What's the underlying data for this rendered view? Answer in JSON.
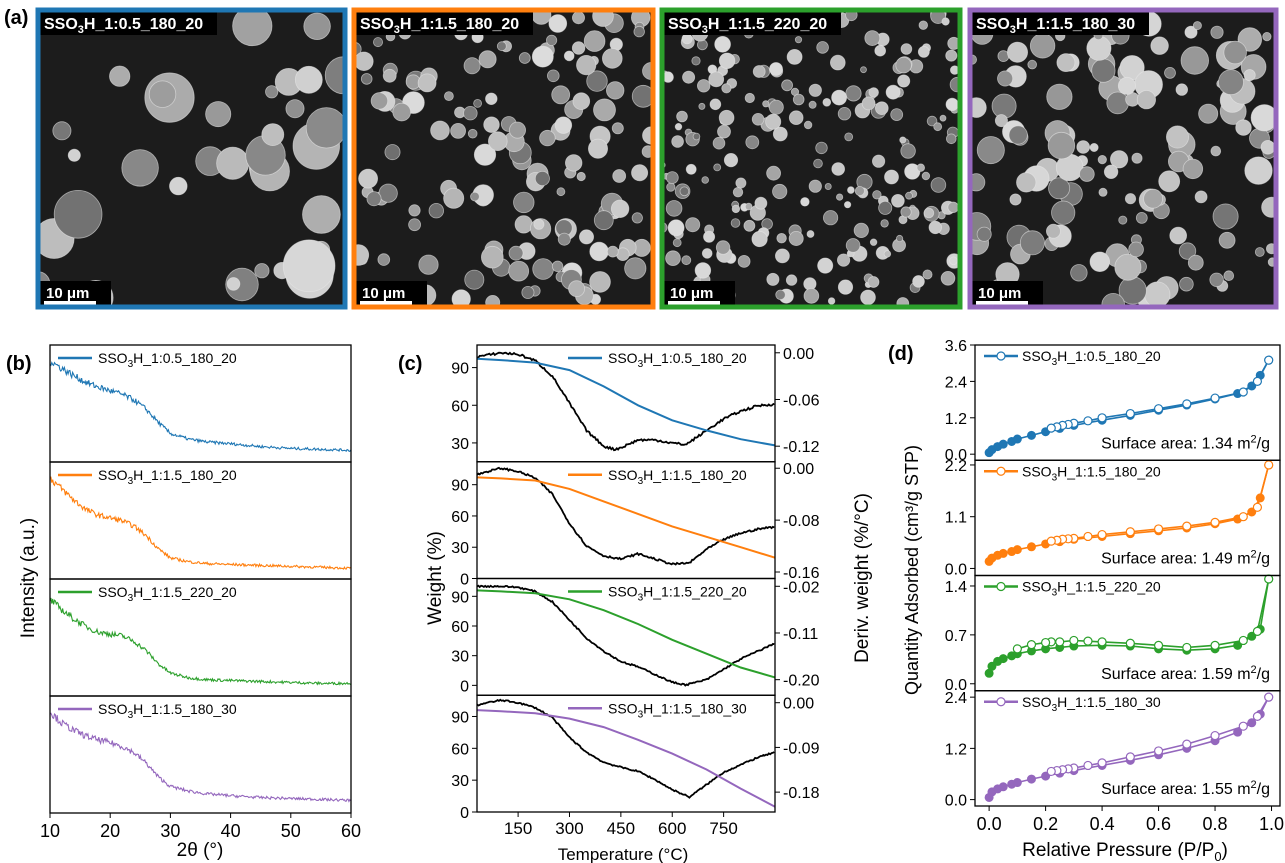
{
  "panel_labels": {
    "a": "(a)",
    "b": "(b)",
    "c": "(c)",
    "d": "(d)"
  },
  "colors": {
    "blue": "#1f77b4",
    "orange": "#ff7f0e",
    "green": "#2ca02c",
    "purple": "#9467bd",
    "deriv": "#000000"
  },
  "samples": [
    {
      "prefix": "SSO",
      "sub": "3",
      "suffix": "H_1:0.5_180_20",
      "color": "#1f77b4"
    },
    {
      "prefix": "SSO",
      "sub": "3",
      "suffix": "H_1:1.5_180_20",
      "color": "#ff7f0e"
    },
    {
      "prefix": "SSO",
      "sub": "3",
      "suffix": "H_1:1.5_220_20",
      "color": "#2ca02c"
    },
    {
      "prefix": "SSO",
      "sub": "3",
      "suffix": "H_1:1.5_180_30",
      "color": "#9467bd"
    }
  ],
  "sem": {
    "scale_bar_label": "10 μm",
    "images": [
      {
        "morphology": "large-fused-particles"
      },
      {
        "morphology": "dense-small-spheres"
      },
      {
        "morphology": "uniform-small-spheres"
      },
      {
        "morphology": "clustered-spheres"
      }
    ]
  },
  "chart_data": [
    {
      "panel": "b",
      "type": "line",
      "xlabel_prefix": "2",
      "xlabel_theta": "θ",
      "xlabel_suffix": " (°)",
      "ylabel": "Intensity (a.u.)",
      "xlim": [
        10,
        60
      ],
      "xticks": [
        10,
        20,
        30,
        40,
        50,
        60
      ],
      "series": [
        {
          "name": "SSO3H_1:0.5_180_20",
          "x": [
            10,
            12,
            14,
            16,
            18,
            20,
            22,
            24,
            26,
            28,
            30,
            33,
            36,
            40,
            45,
            50,
            55,
            60
          ],
          "y": [
            1.0,
            0.92,
            0.84,
            0.77,
            0.72,
            0.68,
            0.64,
            0.58,
            0.48,
            0.34,
            0.22,
            0.16,
            0.13,
            0.11,
            0.08,
            0.06,
            0.05,
            0.04
          ]
        },
        {
          "name": "SSO3H_1:1.5_180_20",
          "x": [
            10,
            12,
            14,
            16,
            18,
            20,
            22,
            24,
            26,
            28,
            30,
            33,
            36,
            40,
            45,
            50,
            55,
            60
          ],
          "y": [
            1.0,
            0.88,
            0.76,
            0.66,
            0.6,
            0.57,
            0.54,
            0.48,
            0.38,
            0.24,
            0.14,
            0.1,
            0.08,
            0.07,
            0.06,
            0.05,
            0.04,
            0.03
          ]
        },
        {
          "name": "SSO3H_1:1.5_220_20",
          "x": [
            10,
            12,
            14,
            16,
            18,
            20,
            22,
            24,
            26,
            28,
            30,
            33,
            36,
            40,
            45,
            50,
            55,
            60
          ],
          "y": [
            0.95,
            0.84,
            0.74,
            0.66,
            0.6,
            0.58,
            0.56,
            0.5,
            0.4,
            0.26,
            0.16,
            0.11,
            0.09,
            0.08,
            0.07,
            0.06,
            0.05,
            0.05
          ]
        },
        {
          "name": "SSO3H_1:1.5_180_30",
          "x": [
            10,
            12,
            14,
            16,
            18,
            20,
            22,
            24,
            26,
            28,
            30,
            33,
            36,
            40,
            45,
            50,
            55,
            60
          ],
          "y": [
            1.0,
            0.88,
            0.8,
            0.74,
            0.7,
            0.67,
            0.63,
            0.56,
            0.45,
            0.3,
            0.2,
            0.15,
            0.12,
            0.1,
            0.08,
            0.07,
            0.06,
            0.05
          ]
        }
      ]
    },
    {
      "panel": "c",
      "type": "line",
      "xlabel": "Temperature (°C)",
      "ylabel_left": "Weight (%)",
      "ylabel_right": "Deriv. weight (%/°C)",
      "xlim": [
        30,
        900
      ],
      "xticks": [
        150,
        300,
        450,
        600,
        750
      ],
      "subplots": [
        {
          "ylim": [
            15,
            108
          ],
          "yticks": [
            30,
            60,
            90
          ],
          "y2lim": [
            -0.14,
            0.01
          ],
          "y2ticks": [
            "0.00",
            "-0.06",
            "-0.12"
          ],
          "y2tickvals": [
            0.0,
            -0.06,
            -0.12
          ],
          "weight": {
            "x": [
              30,
              100,
              200,
              300,
              400,
              500,
              600,
              700,
              800,
              900
            ],
            "y": [
              97,
              96,
              94,
              88,
              75,
              60,
              48,
              40,
              33,
              28
            ]
          },
          "deriv": {
            "x": [
              30,
              60,
              100,
              150,
              200,
              250,
              300,
              350,
              400,
              430,
              450,
              500,
              550,
              600,
              640,
              700,
              750,
              800,
              850,
              900
            ],
            "y": [
              -0.005,
              -0.003,
              0.0,
              -0.002,
              -0.01,
              -0.03,
              -0.065,
              -0.1,
              -0.12,
              -0.124,
              -0.122,
              -0.112,
              -0.112,
              -0.116,
              -0.118,
              -0.1,
              -0.085,
              -0.075,
              -0.068,
              -0.066
            ]
          }
        },
        {
          "ylim": [
            0,
            112
          ],
          "yticks": [
            0,
            30,
            60,
            90
          ],
          "y2lim": [
            -0.17,
            0.01
          ],
          "y2ticks": [
            "0.00",
            "-0.08",
            "-0.16"
          ],
          "y2tickvals": [
            0.0,
            -0.08,
            -0.16
          ],
          "weight": {
            "x": [
              30,
              100,
              200,
              300,
              400,
              500,
              600,
              700,
              800,
              900
            ],
            "y": [
              97,
              96,
              94,
              86,
              74,
              62,
              50,
              40,
              30,
              20
            ]
          },
          "deriv": {
            "x": [
              30,
              60,
              100,
              150,
              200,
              250,
              300,
              350,
              400,
              450,
              500,
              550,
              600,
              650,
              700,
              750,
              800,
              850,
              900
            ],
            "y": [
              -0.01,
              -0.005,
              0.0,
              -0.005,
              -0.015,
              -0.04,
              -0.085,
              -0.12,
              -0.135,
              -0.14,
              -0.132,
              -0.14,
              -0.148,
              -0.146,
              -0.125,
              -0.11,
              -0.1,
              -0.094,
              -0.09
            ]
          }
        },
        {
          "ylim": [
            -10,
            108
          ],
          "yticks": [
            0,
            30,
            60,
            90
          ],
          "y2lim": [
            -0.23,
            -0.005
          ],
          "y2ticks": [
            "-0.02",
            "-0.11",
            "-0.20"
          ],
          "y2tickvals": [
            -0.02,
            -0.11,
            -0.2
          ],
          "weight": {
            "x": [
              30,
              100,
              200,
              300,
              400,
              500,
              600,
              700,
              800,
              900
            ],
            "y": [
              96,
              95,
              93,
              87,
              76,
              62,
              46,
              32,
              18,
              8
            ]
          },
          "deriv": {
            "x": [
              30,
              60,
              100,
              150,
              200,
              250,
              300,
              350,
              400,
              450,
              500,
              550,
              600,
              640,
              700,
              750,
              800,
              850,
              900
            ],
            "y": [
              -0.02,
              -0.02,
              -0.02,
              -0.022,
              -0.03,
              -0.05,
              -0.085,
              -0.12,
              -0.145,
              -0.165,
              -0.175,
              -0.19,
              -0.205,
              -0.21,
              -0.2,
              -0.18,
              -0.16,
              -0.145,
              -0.13
            ]
          }
        },
        {
          "ylim": [
            0,
            110
          ],
          "yticks": [
            0,
            30,
            60,
            90
          ],
          "y2lim": [
            -0.22,
            0.015
          ],
          "y2ticks": [
            "0.00",
            "-0.09",
            "-0.18"
          ],
          "y2tickvals": [
            0.0,
            -0.09,
            -0.18
          ],
          "weight": {
            "x": [
              30,
              100,
              200,
              300,
              400,
              500,
              600,
              700,
              800,
              900
            ],
            "y": [
              96,
              95,
              93,
              88,
              80,
              68,
              55,
              40,
              22,
              5
            ]
          },
          "deriv": {
            "x": [
              30,
              60,
              100,
              150,
              200,
              250,
              300,
              350,
              400,
              450,
              500,
              550,
              600,
              650,
              700,
              750,
              800,
              850,
              900
            ],
            "y": [
              -0.005,
              0.0,
              0.005,
              0.0,
              -0.01,
              -0.03,
              -0.07,
              -0.1,
              -0.12,
              -0.13,
              -0.138,
              -0.155,
              -0.175,
              -0.19,
              -0.165,
              -0.14,
              -0.125,
              -0.11,
              -0.1
            ]
          }
        }
      ]
    },
    {
      "panel": "d",
      "type": "scatter",
      "xlabel_main": "Relative Pressure (P/P",
      "xlabel_sub": "0",
      "xlabel_end": ")",
      "ylabel": "Quantity Adsorbed (cm³/g STP)",
      "xlim": [
        -0.05,
        1.03
      ],
      "xticks": [
        "0.0",
        "0.2",
        "0.4",
        "0.6",
        "0.8",
        "1.0"
      ],
      "xtickvals": [
        0.0,
        0.2,
        0.4,
        0.6,
        0.8,
        1.0
      ],
      "area_prefix": "Surface area: ",
      "area_unit_main": " m",
      "area_unit_sup": "2",
      "area_unit_end": "/g",
      "subplots": [
        {
          "surface_area": "1.34",
          "ylim": [
            -0.2,
            3.6
          ],
          "yticks": [
            "0.0",
            "1.2",
            "2.4",
            "3.6"
          ],
          "ytickvals": [
            0.0,
            1.2,
            2.4,
            3.6
          ],
          "adsorption": {
            "x": [
              0.0,
              0.01,
              0.03,
              0.05,
              0.08,
              0.1,
              0.15,
              0.2,
              0.25,
              0.3,
              0.4,
              0.5,
              0.6,
              0.7,
              0.8,
              0.88,
              0.93,
              0.96,
              0.99
            ],
            "y": [
              0.05,
              0.15,
              0.25,
              0.33,
              0.42,
              0.5,
              0.62,
              0.74,
              0.85,
              0.95,
              1.12,
              1.28,
              1.45,
              1.62,
              1.82,
              2.0,
              2.25,
              2.6,
              3.1
            ]
          },
          "desorption": {
            "x": [
              0.99,
              0.95,
              0.9,
              0.8,
              0.7,
              0.6,
              0.5,
              0.4,
              0.35,
              0.3,
              0.28,
              0.26,
              0.24,
              0.22
            ],
            "y": [
              3.1,
              2.4,
              2.05,
              1.85,
              1.66,
              1.5,
              1.34,
              1.2,
              1.1,
              1.02,
              0.98,
              0.95,
              0.9,
              0.86
            ]
          }
        },
        {
          "surface_area": "1.49",
          "ylim": [
            -0.15,
            2.3
          ],
          "yticks": [
            "0.0",
            "1.1",
            "2.2"
          ],
          "ytickvals": [
            0.0,
            1.1,
            2.2
          ],
          "adsorption": {
            "x": [
              0.0,
              0.01,
              0.03,
              0.05,
              0.08,
              0.1,
              0.15,
              0.2,
              0.25,
              0.3,
              0.4,
              0.5,
              0.6,
              0.7,
              0.8,
              0.88,
              0.93,
              0.96,
              0.99
            ],
            "y": [
              0.15,
              0.22,
              0.28,
              0.32,
              0.36,
              0.4,
              0.46,
              0.52,
              0.57,
              0.62,
              0.68,
              0.74,
              0.8,
              0.86,
              0.95,
              1.05,
              1.2,
              1.5,
              2.2
            ]
          },
          "desorption": {
            "x": [
              0.99,
              0.95,
              0.9,
              0.8,
              0.7,
              0.6,
              0.5,
              0.4,
              0.35,
              0.3,
              0.28,
              0.26,
              0.24,
              0.22
            ],
            "y": [
              2.2,
              1.3,
              1.1,
              0.98,
              0.9,
              0.84,
              0.78,
              0.72,
              0.68,
              0.64,
              0.63,
              0.62,
              0.6,
              0.58
            ]
          }
        },
        {
          "surface_area": "1.59",
          "ylim": [
            -0.1,
            1.55
          ],
          "yticks": [
            "0.0",
            "0.7",
            "1.4"
          ],
          "ytickvals": [
            0.0,
            0.7,
            1.4
          ],
          "adsorption": {
            "x": [
              0.0,
              0.01,
              0.03,
              0.05,
              0.08,
              0.1,
              0.15,
              0.2,
              0.25,
              0.3,
              0.4,
              0.5,
              0.6,
              0.7,
              0.8,
              0.88,
              0.93,
              0.96,
              0.99
            ],
            "y": [
              0.15,
              0.25,
              0.32,
              0.36,
              0.4,
              0.43,
              0.47,
              0.5,
              0.52,
              0.54,
              0.55,
              0.54,
              0.5,
              0.48,
              0.5,
              0.55,
              0.68,
              0.78,
              1.5
            ]
          },
          "desorption": {
            "x": [
              0.99,
              0.95,
              0.9,
              0.8,
              0.7,
              0.6,
              0.5,
              0.4,
              0.35,
              0.3,
              0.25,
              0.22,
              0.2,
              0.15,
              0.1
            ],
            "y": [
              1.5,
              0.75,
              0.62,
              0.55,
              0.52,
              0.55,
              0.58,
              0.6,
              0.61,
              0.62,
              0.6,
              0.6,
              0.59,
              0.56,
              0.5
            ]
          }
        },
        {
          "surface_area": "1.55",
          "ylim": [
            -0.15,
            2.55
          ],
          "yticks": [
            "0.0",
            "1.2",
            "2.4"
          ],
          "ytickvals": [
            0.0,
            1.2,
            2.4
          ],
          "adsorption": {
            "x": [
              0.0,
              0.01,
              0.03,
              0.05,
              0.08,
              0.1,
              0.15,
              0.2,
              0.25,
              0.3,
              0.4,
              0.5,
              0.6,
              0.7,
              0.8,
              0.88,
              0.93,
              0.96,
              0.99
            ],
            "y": [
              0.05,
              0.18,
              0.25,
              0.3,
              0.36,
              0.4,
              0.48,
              0.55,
              0.62,
              0.68,
              0.8,
              0.92,
              1.05,
              1.2,
              1.38,
              1.58,
              1.8,
              2.0,
              2.4
            ]
          },
          "desorption": {
            "x": [
              0.99,
              0.95,
              0.9,
              0.8,
              0.7,
              0.6,
              0.5,
              0.4,
              0.35,
              0.3,
              0.28,
              0.26,
              0.24,
              0.22
            ],
            "y": [
              2.4,
              1.95,
              1.72,
              1.5,
              1.3,
              1.14,
              1.0,
              0.86,
              0.8,
              0.74,
              0.72,
              0.7,
              0.68,
              0.66
            ]
          }
        }
      ]
    }
  ]
}
